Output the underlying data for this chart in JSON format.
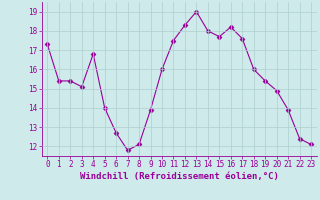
{
  "x": [
    0,
    1,
    2,
    3,
    4,
    5,
    6,
    7,
    8,
    9,
    10,
    11,
    12,
    13,
    14,
    15,
    16,
    17,
    18,
    19,
    20,
    21,
    22,
    23
  ],
  "y": [
    17.3,
    15.4,
    15.4,
    15.1,
    16.8,
    14.0,
    12.7,
    11.8,
    12.1,
    13.9,
    16.0,
    17.5,
    18.3,
    19.0,
    18.0,
    17.7,
    18.2,
    17.6,
    16.0,
    15.4,
    14.9,
    13.9,
    12.4,
    12.1
  ],
  "line_color": "#990099",
  "marker": "D",
  "marker_size": 2.5,
  "bg_color": "#ceeaea",
  "grid_color": "#aed0d0",
  "xlabel": "Windchill (Refroidissement éolien,°C)",
  "xlabel_color": "#990099",
  "ylim": [
    11.5,
    19.5
  ],
  "xlim": [
    -0.5,
    23.5
  ],
  "yticks": [
    12,
    13,
    14,
    15,
    16,
    17,
    18,
    19
  ],
  "xticks": [
    0,
    1,
    2,
    3,
    4,
    5,
    6,
    7,
    8,
    9,
    10,
    11,
    12,
    13,
    14,
    15,
    16,
    17,
    18,
    19,
    20,
    21,
    22,
    23
  ],
  "tick_label_fontsize": 5.5,
  "xlabel_fontsize": 6.5
}
